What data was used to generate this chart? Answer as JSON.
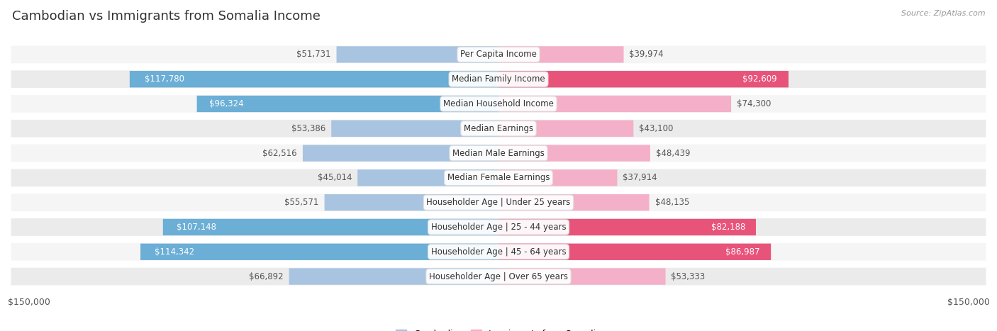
{
  "title": "Cambodian vs Immigrants from Somalia Income",
  "source": "Source: ZipAtlas.com",
  "categories": [
    "Per Capita Income",
    "Median Family Income",
    "Median Household Income",
    "Median Earnings",
    "Median Male Earnings",
    "Median Female Earnings",
    "Householder Age | Under 25 years",
    "Householder Age | 25 - 44 years",
    "Householder Age | 45 - 64 years",
    "Householder Age | Over 65 years"
  ],
  "cambodian_values": [
    51731,
    117780,
    96324,
    53386,
    62516,
    45014,
    55571,
    107148,
    114342,
    66892
  ],
  "somalia_values": [
    39974,
    92609,
    74300,
    43100,
    48439,
    37914,
    48135,
    82188,
    86987,
    53333
  ],
  "max_val": 150000,
  "cambodian_color_light": "#a8c4e0",
  "cambodian_color_dark": "#6baed6",
  "somalia_color_light": "#f4b0c8",
  "somalia_color_dark": "#e8537a",
  "row_bg_even": "#f5f5f5",
  "row_bg_odd": "#ebebeb",
  "threshold_dark_label": 80000,
  "legend_cambodian_label": "Cambodian",
  "legend_somalia_label": "Immigrants from Somalia",
  "title_fontsize": 13,
  "label_fontsize": 8.5,
  "value_fontsize": 8.5
}
